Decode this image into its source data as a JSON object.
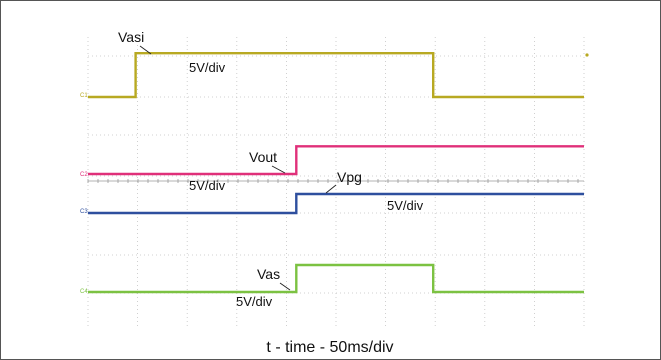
{
  "chart_data": {
    "type": "line",
    "xlabel": "t - time - 50ms/div",
    "x_unit": "ms",
    "x_per_div": 50,
    "xlim": [
      0,
      500
    ],
    "grid": true,
    "channels": [
      {
        "id": "C1",
        "name": "Vasi",
        "scale": "5V/div",
        "color": "#b8a922",
        "points": [
          [
            0,
            0
          ],
          [
            48,
            0
          ],
          [
            48,
            3.0
          ],
          [
            348,
            3.0
          ],
          [
            348,
            0
          ],
          [
            500,
            0
          ]
        ]
      },
      {
        "id": "C2",
        "name": "Vout",
        "scale": "5V/div",
        "color": "#e0307a",
        "points": [
          [
            0,
            0
          ],
          [
            210,
            0
          ],
          [
            210,
            1.9
          ],
          [
            500,
            1.9
          ]
        ]
      },
      {
        "id": "C3",
        "name": "Vpg",
        "scale": "5V/div",
        "color": "#2e4f9e",
        "points": [
          [
            0,
            0
          ],
          [
            210,
            0
          ],
          [
            210,
            1.3
          ],
          [
            500,
            1.3
          ]
        ]
      },
      {
        "id": "C4",
        "name": "Vas",
        "scale": "5V/div",
        "color": "#7cc242",
        "points": [
          [
            0,
            0
          ],
          [
            210,
            0
          ],
          [
            210,
            1.85
          ],
          [
            348,
            1.85
          ],
          [
            348,
            0
          ],
          [
            500,
            0
          ]
        ]
      }
    ]
  }
}
